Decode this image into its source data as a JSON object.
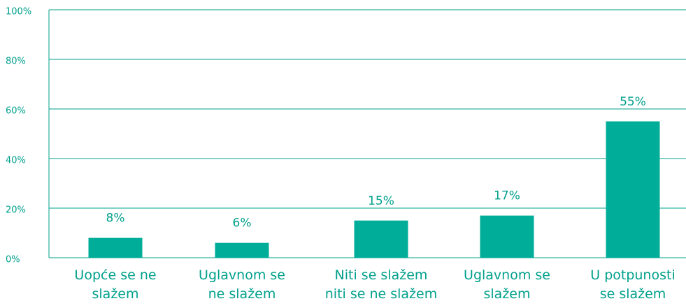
{
  "chart_data": {
    "type": "bar",
    "categories": [
      "Uopće se ne\nslažem",
      "Uglavnom se\nne slažem",
      "Niti se slažem\nniti se ne slažem",
      "Uglavnom se\nslažem",
      "U potpunosti\nse slažem"
    ],
    "values": [
      8,
      6,
      15,
      17,
      55
    ],
    "value_labels": [
      "8%",
      "6%",
      "15%",
      "17%",
      "55%"
    ],
    "color": "#00ad98",
    "ylim": [
      0,
      100
    ],
    "yticks": [
      {
        "value": 0,
        "label": "0%"
      },
      {
        "value": 20,
        "label": "20%"
      },
      {
        "value": 40,
        "label": "40%"
      },
      {
        "value": 60,
        "label": "60%"
      },
      {
        "value": 80,
        "label": "80%"
      },
      {
        "value": 100,
        "label": "100%"
      }
    ],
    "grid": true
  }
}
